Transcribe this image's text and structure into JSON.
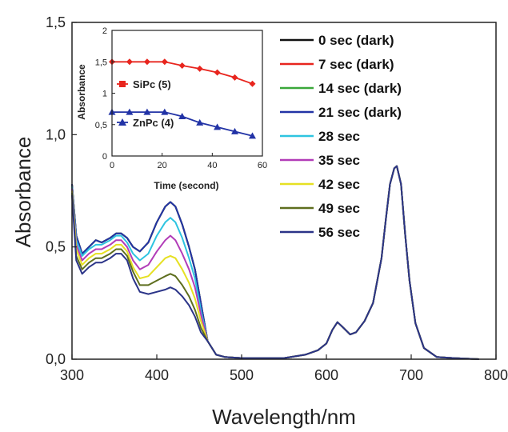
{
  "chart_data": [
    {
      "type": "line",
      "title": "",
      "xlabel": "Wavelength/nm",
      "ylabel": "Absorbance",
      "xlim": [
        300,
        800
      ],
      "ylim": [
        0,
        1.5
      ],
      "xticks": [
        300,
        400,
        500,
        600,
        700,
        800
      ],
      "yticks": [
        0,
        0.5,
        1.0,
        1.5
      ],
      "xtick_labels": [
        "300",
        "400",
        "500",
        "600",
        "700",
        "800"
      ],
      "ytick_labels": [
        "0,0",
        "0,5",
        "1,0",
        "1,5"
      ],
      "grid": false,
      "legend_position": "top-right",
      "common_tail_x": [
        460,
        470,
        480,
        500,
        550,
        575,
        590,
        600,
        607,
        613,
        620,
        628,
        635,
        645,
        655,
        665,
        670,
        675,
        680,
        683,
        688,
        693,
        698,
        705,
        715,
        730,
        750,
        780
      ],
      "common_tail_y": [
        0.08,
        0.02,
        0.01,
        0.005,
        0.005,
        0.02,
        0.04,
        0.07,
        0.13,
        0.165,
        0.14,
        0.11,
        0.12,
        0.17,
        0.25,
        0.45,
        0.62,
        0.78,
        0.85,
        0.86,
        0.78,
        0.55,
        0.35,
        0.16,
        0.05,
        0.01,
        0.005,
        0.0
      ],
      "series_x": [
        300,
        305,
        312,
        320,
        328,
        335,
        345,
        352,
        358,
        365,
        372,
        380,
        390,
        400,
        410,
        416,
        422,
        430,
        438,
        445,
        452
      ],
      "series": [
        {
          "name": "0 sec (dark)",
          "color": "#111111",
          "values": [
            0.78,
            0.55,
            0.47,
            0.5,
            0.53,
            0.52,
            0.54,
            0.56,
            0.56,
            0.54,
            0.5,
            0.48,
            0.52,
            0.61,
            0.68,
            0.7,
            0.68,
            0.6,
            0.5,
            0.4,
            0.25
          ]
        },
        {
          "name": "7 sec (dark)",
          "color": "#e8251e",
          "values": [
            0.78,
            0.55,
            0.47,
            0.5,
            0.53,
            0.52,
            0.54,
            0.56,
            0.56,
            0.54,
            0.5,
            0.48,
            0.52,
            0.61,
            0.68,
            0.7,
            0.68,
            0.6,
            0.5,
            0.4,
            0.25
          ]
        },
        {
          "name": "14 sec (dark)",
          "color": "#3aa83a",
          "values": [
            0.78,
            0.55,
            0.47,
            0.5,
            0.53,
            0.52,
            0.54,
            0.56,
            0.56,
            0.54,
            0.5,
            0.48,
            0.52,
            0.61,
            0.68,
            0.7,
            0.68,
            0.6,
            0.5,
            0.4,
            0.25
          ]
        },
        {
          "name": "21 sec (dark)",
          "color": "#2233a6",
          "values": [
            0.78,
            0.55,
            0.47,
            0.5,
            0.53,
            0.52,
            0.54,
            0.56,
            0.56,
            0.54,
            0.5,
            0.48,
            0.52,
            0.61,
            0.68,
            0.7,
            0.68,
            0.6,
            0.5,
            0.4,
            0.25
          ]
        },
        {
          "name": "28 sec",
          "color": "#2ec4e0",
          "values": [
            0.77,
            0.53,
            0.46,
            0.49,
            0.51,
            0.51,
            0.53,
            0.55,
            0.55,
            0.52,
            0.47,
            0.44,
            0.47,
            0.55,
            0.61,
            0.63,
            0.61,
            0.54,
            0.45,
            0.36,
            0.22
          ]
        },
        {
          "name": "35 sec",
          "color": "#b23cb8",
          "values": [
            0.76,
            0.51,
            0.44,
            0.47,
            0.49,
            0.49,
            0.51,
            0.53,
            0.53,
            0.5,
            0.44,
            0.4,
            0.42,
            0.48,
            0.53,
            0.55,
            0.53,
            0.47,
            0.4,
            0.32,
            0.2
          ]
        },
        {
          "name": "42 sec",
          "color": "#e6e022",
          "values": [
            0.75,
            0.49,
            0.42,
            0.45,
            0.47,
            0.47,
            0.49,
            0.51,
            0.51,
            0.48,
            0.41,
            0.36,
            0.37,
            0.41,
            0.45,
            0.46,
            0.45,
            0.4,
            0.34,
            0.27,
            0.17
          ]
        },
        {
          "name": "49 sec",
          "color": "#5e6e1e",
          "values": [
            0.74,
            0.46,
            0.4,
            0.43,
            0.45,
            0.45,
            0.47,
            0.49,
            0.49,
            0.46,
            0.39,
            0.33,
            0.33,
            0.35,
            0.37,
            0.38,
            0.37,
            0.33,
            0.28,
            0.22,
            0.14
          ]
        },
        {
          "name": "56 sec",
          "color": "#2b3488",
          "values": [
            0.73,
            0.44,
            0.38,
            0.41,
            0.43,
            0.43,
            0.45,
            0.47,
            0.47,
            0.44,
            0.36,
            0.3,
            0.29,
            0.3,
            0.31,
            0.32,
            0.31,
            0.28,
            0.24,
            0.19,
            0.12
          ]
        }
      ]
    },
    {
      "type": "line",
      "title": "",
      "xlabel": "Time (second)",
      "ylabel": "Absorbance",
      "xlim": [
        0,
        60
      ],
      "ylim": [
        0,
        2
      ],
      "xticks": [
        0,
        20,
        40,
        60
      ],
      "yticks": [
        0,
        0.5,
        1,
        1.5,
        2
      ],
      "xtick_labels": [
        "0",
        "20",
        "40",
        "60"
      ],
      "ytick_labels": [
        "0",
        "0,5",
        "1",
        "1,5",
        "2"
      ],
      "grid": false,
      "x": [
        0,
        7,
        14,
        21,
        28,
        35,
        42,
        49,
        56
      ],
      "series": [
        {
          "name": "SiPc (5)",
          "color": "#e8251e",
          "marker": "diamond",
          "values": [
            1.5,
            1.5,
            1.5,
            1.5,
            1.44,
            1.39,
            1.33,
            1.25,
            1.15
          ]
        },
        {
          "name": "ZnPc (4)",
          "color": "#2233a6",
          "marker": "triangle",
          "values": [
            0.7,
            0.7,
            0.7,
            0.7,
            0.63,
            0.53,
            0.46,
            0.39,
            0.32
          ]
        }
      ]
    }
  ]
}
